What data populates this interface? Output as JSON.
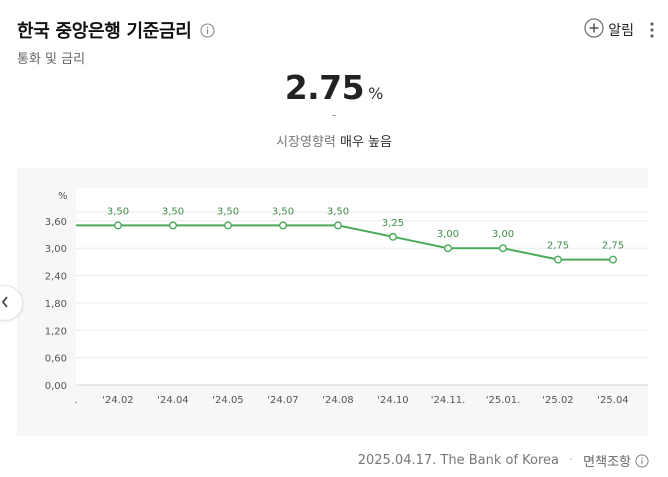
{
  "header": {
    "title": "한국 중앙은행 기준금리",
    "subtitle": "통화 및 금리",
    "alarm_label": "알림"
  },
  "summary": {
    "rate_value": "2.75",
    "rate_unit": "%",
    "change": "-",
    "impact_label": "시장영향력",
    "impact_value": "매우 높음"
  },
  "chart_data": {
    "type": "line",
    "unit_label": "%",
    "y_ticks": [
      "3,60",
      "3,00",
      "2,40",
      "1,80",
      "1,20",
      "0,60",
      "0,00"
    ],
    "y_tick_values": [
      3.6,
      3.0,
      2.4,
      1.8,
      1.2,
      0.6,
      0.0
    ],
    "ylim": [
      0,
      4.32
    ],
    "x_ticks": [
      ".",
      "'24.02",
      "'24.04",
      "'24.05",
      "'24.07",
      "'24.08",
      "'24.10",
      "'24.11.",
      "'25.01.",
      "'25.02",
      "'25.04"
    ],
    "x": [
      "'24.02",
      "'24.04",
      "'24.05",
      "'24.07",
      "'24.08",
      "'24.10",
      "'24.11.",
      "'25.01.",
      "'25.02",
      "'25.04"
    ],
    "values": [
      3.5,
      3.5,
      3.5,
      3.5,
      3.5,
      3.25,
      3.0,
      3.0,
      2.75,
      2.75
    ],
    "value_labels": [
      "3,50",
      "3,50",
      "3,50",
      "3,50",
      "3,50",
      "3,25",
      "3,00",
      "3,00",
      "2,75",
      "2,75"
    ],
    "line_color": "#4caa5a",
    "grid": true
  },
  "footer": {
    "source": "2025.04.17. The Bank of Korea",
    "separator": "·",
    "disclaimer": "면책조항"
  },
  "colors": {
    "accent_green": "#4caa5a",
    "text_dark": "#222222",
    "text_muted": "#777777"
  }
}
